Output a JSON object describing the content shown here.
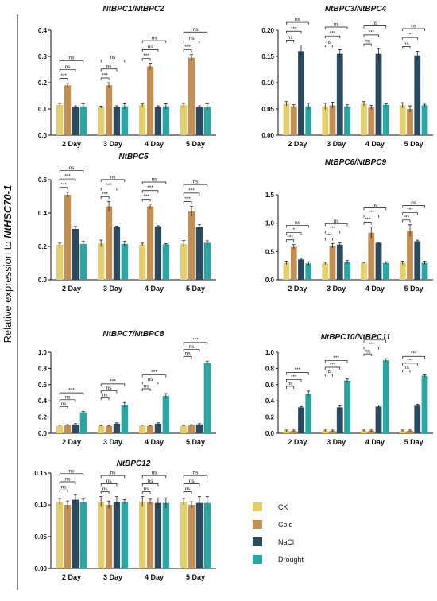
{
  "figure": {
    "ylabel_prefix": "Relative expression to ",
    "ylabel_gene": "NtHSC70-1"
  },
  "legend": [
    {
      "name": "CK",
      "color": "#e3cf6b"
    },
    {
      "name": "Cold",
      "color": "#c48f52"
    },
    {
      "name": "NaCl",
      "color": "#2b4a5f"
    },
    {
      "name": "Drought",
      "color": "#2aa6a2"
    }
  ],
  "sig_labels": {
    "ns": "ns",
    "s1": "*",
    "s3": "***"
  },
  "chart_data": [
    {
      "type": "bar",
      "title": "NtBPC1/NtBPC2",
      "categories": [
        "2 Day",
        "3 Day",
        "4 Day",
        "5 Day"
      ],
      "ylim": [
        0,
        0.4
      ],
      "yticks": [
        "0.0",
        "0.1",
        "0.2",
        "0.3",
        "0.4"
      ],
      "series": [
        {
          "name": "CK",
          "values": [
            0.115,
            0.107,
            0.115,
            0.115
          ],
          "errors": [
            0.006,
            0.004,
            0.004,
            0.006
          ]
        },
        {
          "name": "Cold",
          "values": [
            0.19,
            0.19,
            0.262,
            0.295
          ],
          "errors": [
            0.008,
            0.01,
            0.012,
            0.012
          ]
        },
        {
          "name": "NaCl",
          "values": [
            0.107,
            0.107,
            0.107,
            0.107
          ],
          "errors": [
            0.005,
            0.005,
            0.005,
            0.005
          ]
        },
        {
          "name": "Drought",
          "values": [
            0.11,
            0.11,
            0.11,
            0.108
          ],
          "errors": [
            0.01,
            0.01,
            0.01,
            0.012
          ]
        }
      ],
      "significance": [
        [
          "***",
          "ns",
          "ns"
        ],
        [
          "***",
          "ns",
          "ns"
        ],
        [
          "***",
          "ns",
          "ns"
        ],
        [
          "***",
          "ns",
          "ns"
        ]
      ]
    },
    {
      "type": "bar",
      "title": "NtBPC3/NtBPC4",
      "categories": [
        "2 Day",
        "3 Day",
        "4 Day",
        "5 Day"
      ],
      "ylim": [
        0,
        0.2
      ],
      "yticks": [
        "0.00",
        "0.05",
        "0.10",
        "0.15",
        "0.20"
      ],
      "series": [
        {
          "name": "CK",
          "values": [
            0.06,
            0.055,
            0.06,
            0.057
          ],
          "errors": [
            0.004,
            0.006,
            0.004,
            0.005
          ]
        },
        {
          "name": "Cold",
          "values": [
            0.055,
            0.057,
            0.053,
            0.05
          ],
          "errors": [
            0.003,
            0.006,
            0.004,
            0.006
          ]
        },
        {
          "name": "NaCl",
          "values": [
            0.16,
            0.155,
            0.155,
            0.152
          ],
          "errors": [
            0.012,
            0.008,
            0.01,
            0.008
          ]
        },
        {
          "name": "Drought",
          "values": [
            0.055,
            0.055,
            0.058,
            0.057
          ],
          "errors": [
            0.006,
            0.003,
            0.002,
            0.002
          ]
        }
      ],
      "significance": [
        [
          "ns",
          "***",
          "ns"
        ],
        [
          "ns",
          "***",
          "ns"
        ],
        [
          "ns",
          "***",
          "ns"
        ],
        [
          "ns",
          "***",
          "ns"
        ]
      ]
    },
    {
      "type": "bar",
      "title": "NtBPC5",
      "categories": [
        "2 Day",
        "3 Day",
        "4 Day",
        "5 Day"
      ],
      "ylim": [
        0,
        0.6
      ],
      "yticks": [
        "0.0",
        "0.2",
        "0.4",
        "0.6"
      ],
      "series": [
        {
          "name": "CK",
          "values": [
            0.212,
            0.218,
            0.212,
            0.215
          ],
          "errors": [
            0.008,
            0.02,
            0.008,
            0.02
          ]
        },
        {
          "name": "Cold",
          "values": [
            0.51,
            0.44,
            0.44,
            0.41
          ],
          "errors": [
            0.015,
            0.03,
            0.015,
            0.03
          ]
        },
        {
          "name": "NaCl",
          "values": [
            0.305,
            0.315,
            0.32,
            0.315
          ],
          "errors": [
            0.015,
            0.006,
            0.004,
            0.015
          ]
        },
        {
          "name": "Drought",
          "values": [
            0.215,
            0.215,
            0.212,
            0.222
          ],
          "errors": [
            0.015,
            0.015,
            0.005,
            0.012
          ]
        }
      ],
      "significance": [
        [
          "***",
          "***",
          "ns"
        ],
        [
          "***",
          "***",
          "ns"
        ],
        [
          "***",
          "***",
          "ns"
        ],
        [
          "***",
          "***",
          "ns"
        ]
      ]
    },
    {
      "type": "bar",
      "title": "NtBPC6/NtBPC9",
      "categories": [
        "2 Day",
        "3 Day",
        "4 Day",
        "5 Day"
      ],
      "ylim": [
        0,
        1.5
      ],
      "yticks": [
        "0.0",
        "0.5",
        "1.0",
        "1.5"
      ],
      "series": [
        {
          "name": "CK",
          "values": [
            0.3,
            0.29,
            0.3,
            0.3
          ],
          "errors": [
            0.03,
            0.02,
            0.01,
            0.03
          ]
        },
        {
          "name": "Cold",
          "values": [
            0.58,
            0.6,
            0.83,
            0.87
          ],
          "errors": [
            0.04,
            0.04,
            0.1,
            0.1
          ]
        },
        {
          "name": "NaCl",
          "values": [
            0.36,
            0.62,
            0.65,
            0.68
          ],
          "errors": [
            0.02,
            0.03,
            0.01,
            0.02
          ]
        },
        {
          "name": "Drought",
          "values": [
            0.29,
            0.31,
            0.3,
            0.3
          ],
          "errors": [
            0.03,
            0.03,
            0.02,
            0.03
          ]
        }
      ],
      "significance": [
        [
          "***",
          "*",
          "ns"
        ],
        [
          "***",
          "***",
          "ns"
        ],
        [
          "***",
          "***",
          "ns"
        ],
        [
          "***",
          "***",
          "ns"
        ]
      ]
    },
    {
      "type": "bar",
      "title": "NtBPC7/NtBPC8",
      "categories": [
        "2 Day",
        "3 Day",
        "4 Day",
        "5 Day"
      ],
      "ylim": [
        0,
        1.0
      ],
      "yticks": [
        "0.0",
        "0.2",
        "0.4",
        "0.6",
        "0.8",
        "1.0"
      ],
      "series": [
        {
          "name": "CK",
          "values": [
            0.095,
            0.092,
            0.095,
            0.092
          ],
          "errors": [
            0.006,
            0.006,
            0.006,
            0.006
          ]
        },
        {
          "name": "Cold",
          "values": [
            0.1,
            0.09,
            0.09,
            0.1
          ],
          "errors": [
            0.008,
            0.006,
            0.006,
            0.006
          ]
        },
        {
          "name": "NaCl",
          "values": [
            0.11,
            0.12,
            0.12,
            0.11
          ],
          "errors": [
            0.01,
            0.01,
            0.01,
            0.01
          ]
        },
        {
          "name": "Drought",
          "values": [
            0.26,
            0.35,
            0.46,
            0.87
          ],
          "errors": [
            0.01,
            0.03,
            0.03,
            0.02
          ]
        }
      ],
      "significance": [
        [
          "ns",
          "ns",
          "***"
        ],
        [
          "ns",
          "ns",
          "***"
        ],
        [
          "ns",
          "ns",
          "***"
        ],
        [
          "ns",
          "ns",
          "***"
        ]
      ]
    },
    {
      "type": "bar",
      "title": "NtBPC10/NtBPC11",
      "categories": [
        "2 Day",
        "3 Day",
        "4 Day",
        "5 Day"
      ],
      "ylim": [
        0,
        1.0
      ],
      "yticks": [
        "0.0",
        "0.2",
        "0.4",
        "0.6",
        "0.8",
        "1.0"
      ],
      "series": [
        {
          "name": "CK",
          "values": [
            0.03,
            0.03,
            0.03,
            0.03
          ],
          "errors": [
            0.01,
            0.01,
            0.01,
            0.01
          ]
        },
        {
          "name": "Cold",
          "values": [
            0.03,
            0.03,
            0.03,
            0.03
          ],
          "errors": [
            0.01,
            0.01,
            0.01,
            0.01
          ]
        },
        {
          "name": "NaCl",
          "values": [
            0.32,
            0.32,
            0.33,
            0.34
          ],
          "errors": [
            0.01,
            0.02,
            0.02,
            0.02
          ]
        },
        {
          "name": "Drought",
          "values": [
            0.49,
            0.65,
            0.9,
            0.71
          ],
          "errors": [
            0.03,
            0.02,
            0.02,
            0.01
          ]
        }
      ],
      "significance": [
        [
          "ns",
          "***",
          "***"
        ],
        [
          "ns",
          "***",
          "***"
        ],
        [
          "ns",
          "***",
          "***"
        ],
        [
          "ns",
          "***",
          "***"
        ]
      ]
    },
    {
      "type": "bar",
      "title": "NtBPC12",
      "categories": [
        "2 Day",
        "3 Day",
        "4 Day",
        "5 Day"
      ],
      "ylim": [
        0,
        0.15
      ],
      "yticks": [
        "0.00",
        "0.05",
        "0.10",
        "0.15"
      ],
      "series": [
        {
          "name": "CK",
          "values": [
            0.105,
            0.105,
            0.105,
            0.105
          ],
          "errors": [
            0.005,
            0.008,
            0.008,
            0.005
          ]
        },
        {
          "name": "Cold",
          "values": [
            0.1,
            0.1,
            0.105,
            0.1
          ],
          "errors": [
            0.006,
            0.006,
            0.004,
            0.005
          ]
        },
        {
          "name": "NaCl",
          "values": [
            0.108,
            0.105,
            0.103,
            0.103
          ],
          "errors": [
            0.008,
            0.008,
            0.008,
            0.01
          ]
        },
        {
          "name": "Drought",
          "values": [
            0.105,
            0.105,
            0.103,
            0.103
          ],
          "errors": [
            0.004,
            0.003,
            0.008,
            0.01
          ]
        }
      ],
      "significance": [
        [
          "ns",
          "ns",
          "ns"
        ],
        [
          "ns",
          "ns",
          "ns"
        ],
        [
          "ns",
          "ns",
          "ns"
        ],
        [
          "ns",
          "ns",
          "ns"
        ]
      ]
    }
  ]
}
